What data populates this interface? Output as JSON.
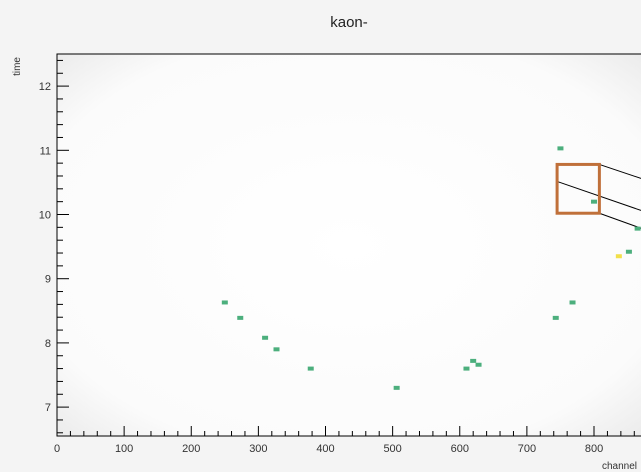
{
  "chart_data": {
    "type": "scatter",
    "title": "kaon-",
    "xlabel": "channel",
    "ylabel": "time",
    "xlim": [
      0,
      870
    ],
    "ylim": [
      6.55,
      12.5
    ],
    "xticks_major": [
      0,
      100,
      200,
      300,
      400,
      500,
      600,
      700,
      800
    ],
    "yticks_major": [
      7,
      8,
      9,
      10,
      11,
      12
    ],
    "grid": false,
    "points": [
      {
        "x": 250,
        "y": 8.63,
        "color": "#4caf7d"
      },
      {
        "x": 273,
        "y": 8.39,
        "color": "#4caf7d"
      },
      {
        "x": 310,
        "y": 8.08,
        "color": "#4caf7d"
      },
      {
        "x": 327,
        "y": 7.9,
        "color": "#4caf7d"
      },
      {
        "x": 378,
        "y": 7.6,
        "color": "#4caf7d"
      },
      {
        "x": 506,
        "y": 7.3,
        "color": "#4caf7d"
      },
      {
        "x": 610,
        "y": 7.6,
        "color": "#4caf7d"
      },
      {
        "x": 620,
        "y": 7.72,
        "color": "#4caf7d"
      },
      {
        "x": 628,
        "y": 7.66,
        "color": "#4caf7d"
      },
      {
        "x": 743,
        "y": 8.39,
        "color": "#4caf7d"
      },
      {
        "x": 768,
        "y": 8.63,
        "color": "#4caf7d"
      },
      {
        "x": 750,
        "y": 11.03,
        "color": "#4caf7d"
      },
      {
        "x": 800,
        "y": 10.2,
        "color": "#4caf7d"
      },
      {
        "x": 837,
        "y": 9.35,
        "color": "#f2e04a"
      },
      {
        "x": 852,
        "y": 9.42,
        "color": "#4caf7d"
      },
      {
        "x": 865,
        "y": 9.78,
        "color": "#4caf7d"
      }
    ],
    "zoom_box": {
      "x0": 745,
      "x1": 808,
      "y0": 10.02,
      "y1": 10.78,
      "color": "#c0703a"
    }
  }
}
